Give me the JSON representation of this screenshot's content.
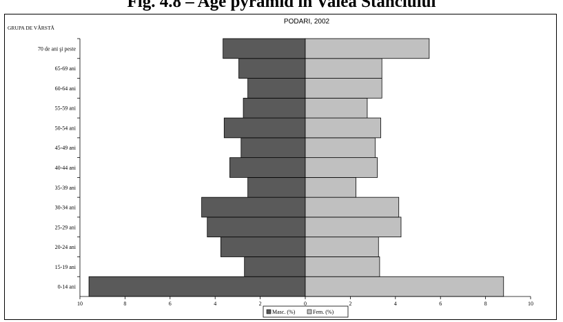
{
  "figure_title": "Fig. 4.8 – Age pyramid in Valea Stanciului",
  "chart_data": {
    "type": "bar",
    "title": "PODARI, 2002",
    "ylabel": "GRUPA DE VÂRSTĂ",
    "categories": [
      "0-14 ani",
      "15-19 ani",
      "20-24 ani",
      "25-29 ani",
      "30-34 ani",
      "35-39 ani",
      "40-44 ani",
      "45-49 ani",
      "50-54 ani",
      "55-59 ani",
      "60-64 ani",
      "65-69 ani",
      "70 de ani şi peste"
    ],
    "series": [
      {
        "name": "Masc. (%)",
        "color": "#5a5a5a",
        "values": [
          9.6,
          2.7,
          3.75,
          4.35,
          4.6,
          2.55,
          3.35,
          2.85,
          3.6,
          2.75,
          2.55,
          2.95,
          3.65
        ]
      },
      {
        "name": "Fem. (%)",
        "color": "#c0c0c0",
        "values": [
          8.8,
          3.3,
          3.25,
          4.25,
          4.15,
          2.25,
          3.2,
          3.1,
          3.35,
          2.75,
          3.4,
          3.4,
          5.5
        ]
      }
    ],
    "xlim": [
      -10,
      10
    ],
    "xticks": [
      "10",
      "8",
      "6",
      "4",
      "2",
      "0",
      "2",
      "4",
      "6",
      "8",
      "10"
    ],
    "grid": false,
    "legend_position": "bottom-center"
  }
}
